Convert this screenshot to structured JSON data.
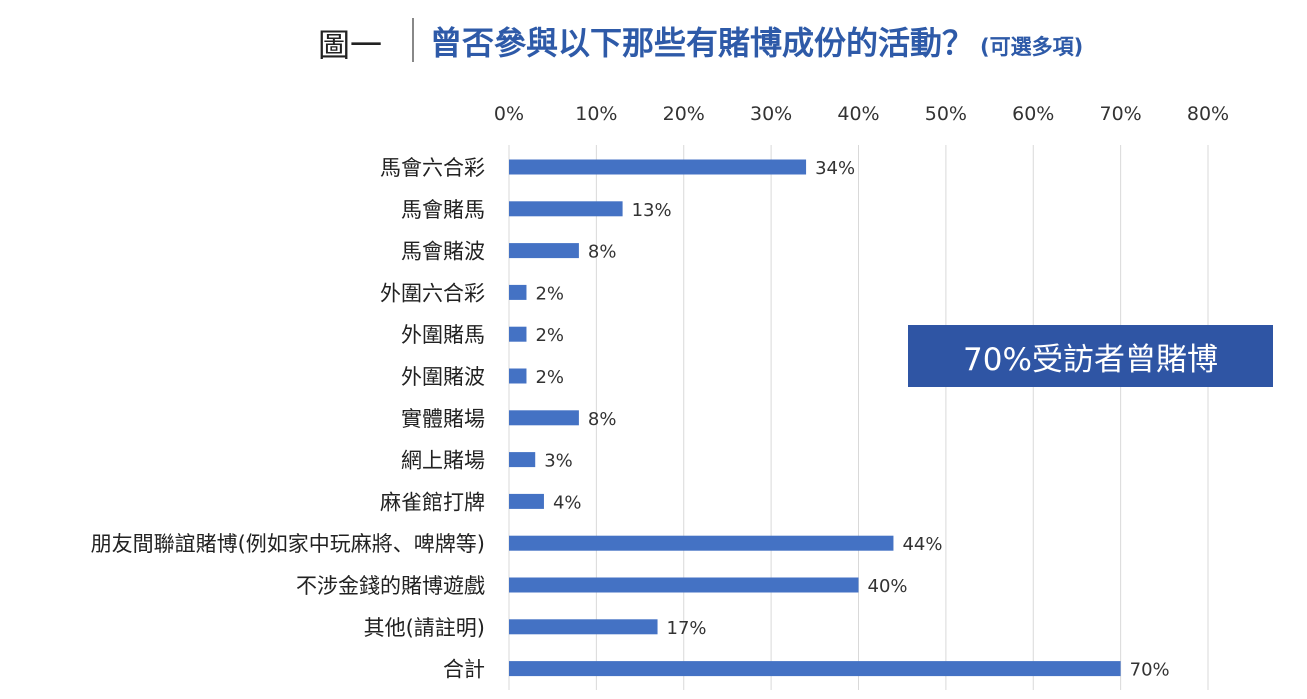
{
  "figure": {
    "label": "圖一",
    "title": "曾否參與以下那些有賭博成份的活動？",
    "note": "(可選多項)",
    "callout": "70%受訪者曾賭博"
  },
  "colors": {
    "bar": "#4472c4",
    "title": "#2e5aa8",
    "callout_bg": "#2f55a4",
    "grid": "#d9d9d9"
  },
  "chart_data": {
    "type": "bar",
    "orientation": "horizontal",
    "title": "曾否參與以下那些有賭博成份的活動？",
    "xlabel": "",
    "ylabel": "",
    "xlim": [
      0,
      80
    ],
    "x_ticks": [
      "0%",
      "10%",
      "20%",
      "30%",
      "40%",
      "50%",
      "60%",
      "70%",
      "80%"
    ],
    "x_axis_position": "top",
    "grid": true,
    "categories": [
      "馬會六合彩",
      "馬會賭馬",
      "馬會賭波",
      "外圍六合彩",
      "外圍賭馬",
      "外圍賭波",
      "實體賭場",
      "網上賭場",
      "麻雀館打牌",
      "朋友間聯誼賭博(例如家中玩麻將、啤牌等)",
      "不涉金錢的賭博遊戲",
      "其他(請註明)",
      "合計"
    ],
    "values": [
      34,
      13,
      8,
      2,
      2,
      2,
      8,
      3,
      4,
      44,
      40,
      17,
      70
    ],
    "value_labels": [
      "34%",
      "13%",
      "8%",
      "2%",
      "2%",
      "2%",
      "8%",
      "3%",
      "4%",
      "44%",
      "40%",
      "17%",
      "70%"
    ]
  }
}
